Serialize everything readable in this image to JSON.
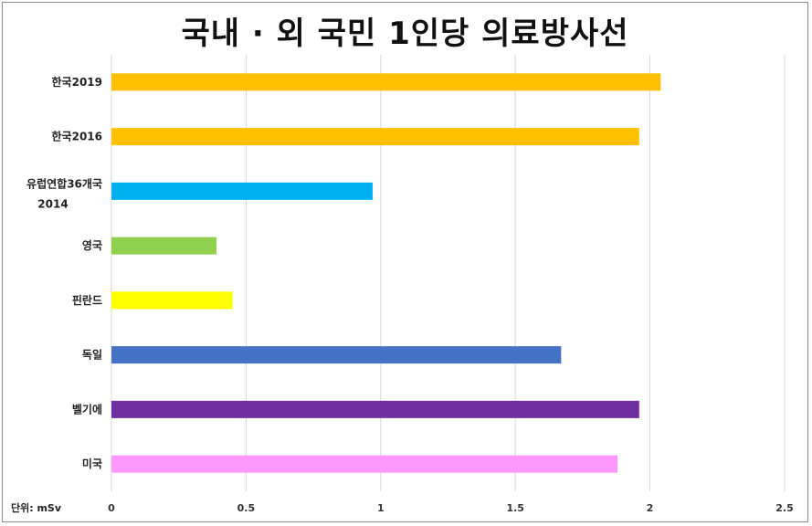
{
  "chart_data": {
    "type": "bar",
    "orientation": "horizontal",
    "title": "국내 · 외 국민 1인당 의료방사선",
    "unit_label": "단위: mSv",
    "categories": [
      [
        "한국2019"
      ],
      [
        "한국2016"
      ],
      [
        "유럽연합36개국",
        "2014"
      ],
      [
        "영국"
      ],
      [
        "핀란드"
      ],
      [
        "독일"
      ],
      [
        "벨기에"
      ],
      [
        "미국"
      ]
    ],
    "values": [
      2.04,
      1.96,
      0.97,
      0.39,
      0.45,
      1.67,
      1.96,
      1.88
    ],
    "colors": [
      "#FFC000",
      "#FFC000",
      "#00B0F0",
      "#92D050",
      "#FFFF00",
      "#4472C4",
      "#7030A0",
      "#FF99FF"
    ],
    "xlim": [
      0,
      2.5
    ],
    "xticks": [
      "0",
      "0.5",
      "1",
      "1.5",
      "2",
      "2.5"
    ],
    "grid": true,
    "legend": "none"
  }
}
